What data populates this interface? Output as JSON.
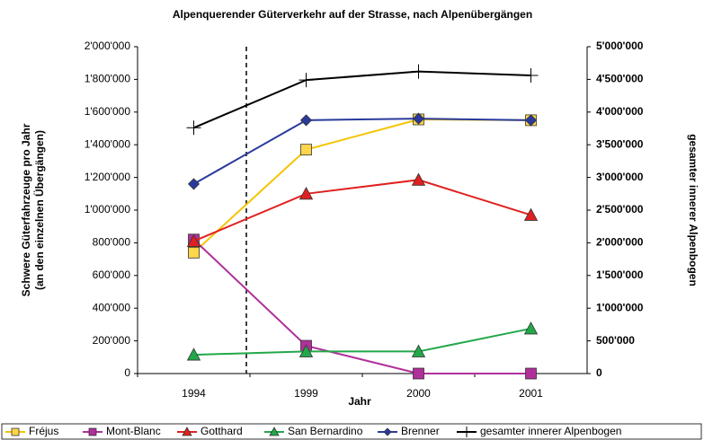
{
  "chart_data": {
    "type": "line",
    "title": "Alpenquerender Güterverkehr auf der Strasse, nach Alpenübergängen",
    "x_label": "Jahr",
    "y_label": [
      "Schwere Güterfahrzeuge pro Jahr",
      "(an den einzelnen Übergängen)"
    ],
    "y2_label": "gesamter innerer Alpenbogen",
    "categories": [
      "1994",
      "1999",
      "2000",
      "2001"
    ],
    "ylim": [
      0,
      2000000
    ],
    "yticks": [
      0,
      {
        "value": 200000,
        "label": "200'000"
      },
      {
        "value": 400000,
        "label": "400'000"
      },
      {
        "value": 600000,
        "label": "600'000"
      },
      {
        "value": 800000,
        "label": "800'000"
      },
      {
        "value": 1000000,
        "label": "1'000'000"
      },
      {
        "value": 1200000,
        "label": "1'200'000"
      },
      {
        "value": 1400000,
        "label": "1'400'000"
      },
      {
        "value": 1600000,
        "label": "1'600'000"
      },
      {
        "value": 1800000,
        "label": "1'800'000"
      },
      {
        "value": 2000000,
        "label": "2'000'000"
      }
    ],
    "y2lim": [
      0,
      5000000
    ],
    "y2ticks": [
      0,
      {
        "value": 500000,
        "label": "500'000"
      },
      {
        "value": 1000000,
        "label": "1'000'000"
      },
      {
        "value": 1500000,
        "label": "1'500'000"
      },
      {
        "value": 2000000,
        "label": "2'000'000"
      },
      {
        "value": 2500000,
        "label": "2'500'000"
      },
      {
        "value": 3000000,
        "label": "3'000'000"
      },
      {
        "value": 3500000,
        "label": "3'500'000"
      },
      {
        "value": 4000000,
        "label": "4'000'000"
      },
      {
        "value": 4500000,
        "label": "4'500'000"
      },
      {
        "value": 5000000,
        "label": "5'000'000"
      }
    ],
    "series": [
      {
        "name": "Fréjus",
        "color": "#f5c400",
        "fill": "#ffd54a",
        "marker": "square",
        "values": [
          740000,
          1370000,
          1555000,
          1550000
        ]
      },
      {
        "name": "Mont-Blanc",
        "color": "#b0309a",
        "fill": "#b0309a",
        "marker": "square",
        "values": [
          820000,
          170000,
          0,
          0
        ]
      },
      {
        "name": "Gotthard",
        "color": "#e02020",
        "fill": "#e02020",
        "marker": "triangle",
        "values": [
          810000,
          1100000,
          1185000,
          970000
        ]
      },
      {
        "name": "San Bernardino",
        "color": "#22a84a",
        "fill": "#22a84a",
        "marker": "triangle",
        "values": [
          115000,
          135000,
          135000,
          275000
        ]
      },
      {
        "name": "Brenner",
        "color": "#2a3a9c",
        "fill": "#2a3a9c",
        "marker": "diamond",
        "values": [
          1160000,
          1550000,
          1560000,
          1550000
        ]
      },
      {
        "name": "gesamter innerer Alpenbogen",
        "color": "#000000",
        "fill": "#000000",
        "marker": "plus",
        "axis": "y2",
        "values": [
          3760000,
          4490000,
          4620000,
          4560000
        ]
      }
    ]
  }
}
